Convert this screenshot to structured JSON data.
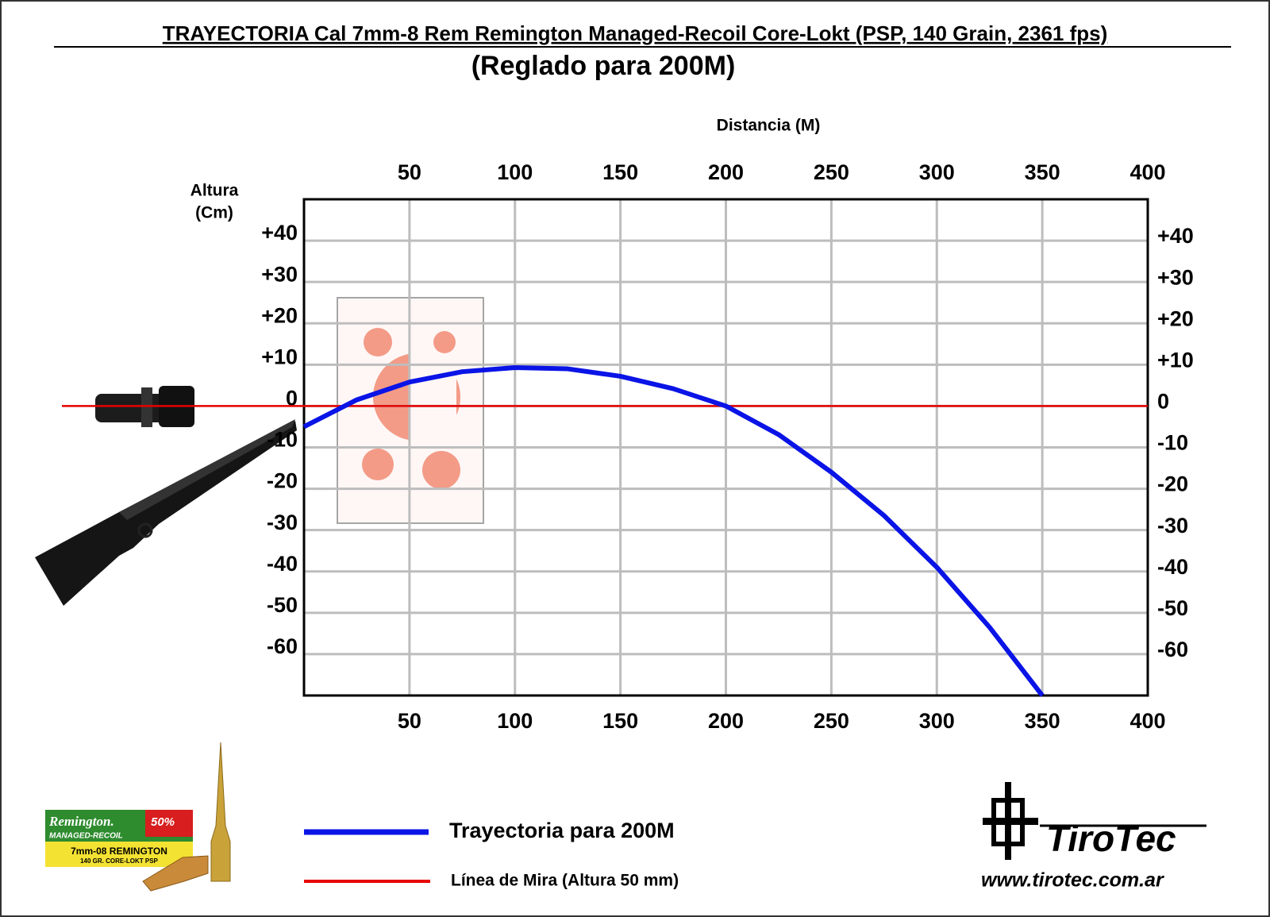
{
  "chart_data": {
    "type": "line",
    "title": "TRAYECTORIA Cal 7mm-8 Rem Remington Managed-Recoil Core-Lokt (PSP, 140 Grain, 2361 fps)",
    "subtitle": "(Reglado para 200M)",
    "x_label": "Distancia (M)",
    "y_label_lines": [
      "Altura",
      "(Cm)"
    ],
    "x": [
      0,
      25,
      50,
      75,
      100,
      125,
      150,
      175,
      200,
      225,
      250,
      275,
      300,
      325,
      350
    ],
    "series": [
      {
        "name": "Trayectoria para 200M",
        "color": "#0a14e6",
        "values": [
          -5,
          1.5,
          5.8,
          8.3,
          9.3,
          9.0,
          7.2,
          4.2,
          0,
          -6.9,
          -16,
          -26.5,
          -39,
          -53.5,
          -70
        ]
      }
    ],
    "sight_line": {
      "name": "Línea de Mira (Altura  50 mm)",
      "color": "#e60000",
      "value": 0
    },
    "xlim": [
      0,
      400
    ],
    "xticks": [
      50,
      100,
      150,
      200,
      250,
      300,
      350,
      400
    ],
    "ylim": [
      -70,
      50
    ],
    "yticks": [
      {
        "value": 40,
        "label": "+40"
      },
      {
        "value": 30,
        "label": "+30"
      },
      {
        "value": 20,
        "label": "+20"
      },
      {
        "value": 10,
        "label": "+10"
      },
      0,
      -10,
      -20,
      -30,
      -40,
      -50,
      -60
    ],
    "grid": true,
    "ammo_box": [
      "Remington.",
      "MANAGED-RECOIL",
      "50%",
      "7mm-08 REMINGTON",
      "140 GR. CORE-LOKT PSP"
    ],
    "logo": {
      "name": "TiroTec",
      "url": "www.tirotec.com.ar"
    }
  }
}
